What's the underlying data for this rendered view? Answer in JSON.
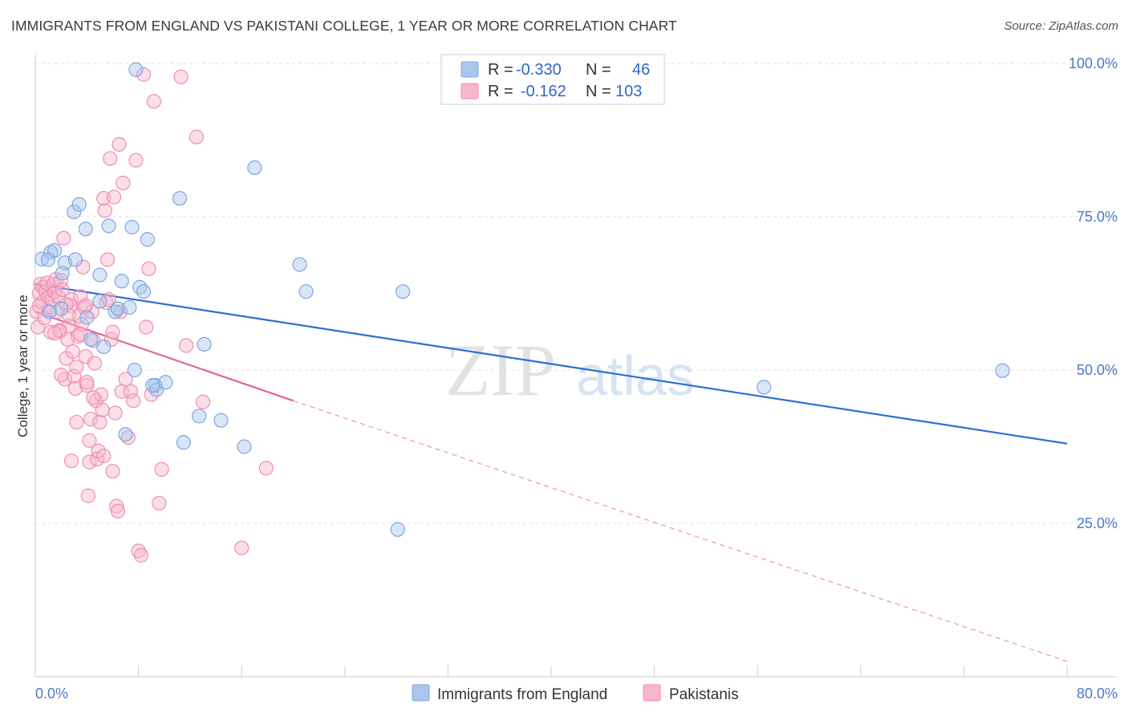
{
  "title": "IMMIGRANTS FROM ENGLAND VS PAKISTANI COLLEGE, 1 YEAR OR MORE CORRELATION CHART",
  "source": "Source: ZipAtlas.com",
  "watermark": {
    "zip": "ZIP",
    "atlas": "atlas"
  },
  "colors": {
    "blue_fill": "#a9c6ee",
    "blue_stroke": "#7ea7df",
    "blue_line": "#2b6fd1",
    "pink_fill": "#f6b6cb",
    "pink_stroke": "#ee8fb0",
    "pink_line": "#e0668f",
    "grid": "#e2e2e2",
    "axis_text": "#4a78c8"
  },
  "legend": {
    "r_label": "R =",
    "n_label": "N =",
    "rows": [
      {
        "series": "Immigrants from England",
        "r": "-0.330",
        "n": "46"
      },
      {
        "series": "Pakistanis",
        "r": "-0.162",
        "n": "103"
      }
    ]
  },
  "chart_data": {
    "type": "scatter",
    "title": "IMMIGRANTS FROM ENGLAND VS PAKISTANI COLLEGE, 1 YEAR OR MORE CORRELATION CHART",
    "xlabel": "",
    "ylabel": "College, 1 year or more",
    "xlim": [
      0,
      80
    ],
    "ylim": [
      0,
      100
    ],
    "x_tick_labels": [
      "0.0%",
      "80.0%"
    ],
    "y_tick_labels": [
      "25.0%",
      "50.0%",
      "75.0%",
      "100.0%"
    ],
    "y_ticks": [
      25,
      50,
      75,
      100
    ],
    "series": [
      {
        "name": "Immigrants from England",
        "color": "blue",
        "points": [
          [
            0.5,
            68.1
          ],
          [
            1.2,
            69.2
          ],
          [
            1.0,
            68.0
          ],
          [
            1.5,
            69.5
          ],
          [
            2.3,
            67.5
          ],
          [
            2.1,
            65.8
          ],
          [
            3.0,
            75.8
          ],
          [
            3.4,
            77.0
          ],
          [
            3.9,
            73.0
          ],
          [
            3.1,
            68.0
          ],
          [
            4.3,
            55.0
          ],
          [
            4.0,
            58.6
          ],
          [
            5.0,
            65.5
          ],
          [
            5.0,
            61.2
          ],
          [
            5.3,
            53.8
          ],
          [
            5.7,
            73.5
          ],
          [
            6.2,
            59.5
          ],
          [
            6.4,
            60.0
          ],
          [
            6.7,
            64.5
          ],
          [
            7.3,
            60.2
          ],
          [
            7.5,
            73.3
          ],
          [
            7.7,
            50.0
          ],
          [
            7.0,
            39.5
          ],
          [
            8.1,
            63.5
          ],
          [
            8.4,
            62.8
          ],
          [
            8.7,
            71.3
          ],
          [
            9.3,
            47.5
          ],
          [
            9.4,
            46.8
          ],
          [
            9.1,
            47.5
          ],
          [
            10.1,
            48.0
          ],
          [
            11.2,
            78.0
          ],
          [
            11.5,
            38.2
          ],
          [
            12.7,
            42.5
          ],
          [
            13.1,
            54.2
          ],
          [
            14.4,
            41.8
          ],
          [
            16.2,
            37.5
          ],
          [
            17.0,
            83.0
          ],
          [
            20.5,
            67.2
          ],
          [
            21.0,
            62.8
          ],
          [
            28.5,
            62.8
          ],
          [
            28.1,
            24.0
          ],
          [
            56.5,
            47.2
          ],
          [
            75.0,
            49.9
          ],
          [
            7.8,
            99.0
          ],
          [
            2.0,
            60.0
          ],
          [
            1.1,
            59.5
          ]
        ]
      },
      {
        "name": "Pakistanis",
        "color": "pink",
        "points": [
          [
            0.1,
            59.5
          ],
          [
            0.2,
            57.0
          ],
          [
            0.3,
            62.5
          ],
          [
            0.4,
            64.0
          ],
          [
            0.5,
            61.0
          ],
          [
            0.6,
            63.5
          ],
          [
            0.7,
            58.5
          ],
          [
            0.8,
            62.8
          ],
          [
            0.9,
            64.2
          ],
          [
            1.0,
            61.8
          ],
          [
            1.1,
            60.2
          ],
          [
            1.2,
            56.2
          ],
          [
            1.3,
            61.5
          ],
          [
            1.4,
            64.0
          ],
          [
            1.5,
            62.7
          ],
          [
            1.6,
            64.8
          ],
          [
            1.7,
            59.5
          ],
          [
            1.8,
            62.0
          ],
          [
            1.9,
            56.5
          ],
          [
            2.0,
            64.6
          ],
          [
            2.1,
            63.1
          ],
          [
            2.2,
            71.5
          ],
          [
            2.3,
            48.5
          ],
          [
            2.4,
            51.9
          ],
          [
            2.5,
            55.0
          ],
          [
            2.6,
            57.2
          ],
          [
            2.7,
            60.5
          ],
          [
            2.8,
            61.5
          ],
          [
            2.9,
            53.0
          ],
          [
            3.0,
            49.0
          ],
          [
            3.1,
            47.0
          ],
          [
            3.2,
            41.5
          ],
          [
            3.3,
            55.5
          ],
          [
            3.4,
            58.8
          ],
          [
            3.5,
            62.0
          ],
          [
            3.6,
            57.5
          ],
          [
            3.7,
            66.8
          ],
          [
            3.8,
            60.2
          ],
          [
            3.9,
            52.2
          ],
          [
            4.0,
            47.5
          ],
          [
            4.1,
            29.5
          ],
          [
            4.2,
            35.0
          ],
          [
            4.3,
            42.0
          ],
          [
            4.4,
            59.5
          ],
          [
            4.5,
            54.8
          ],
          [
            4.6,
            51.1
          ],
          [
            4.7,
            45.0
          ],
          [
            4.8,
            35.5
          ],
          [
            4.9,
            36.8
          ],
          [
            5.0,
            41.5
          ],
          [
            5.1,
            46.0
          ],
          [
            5.2,
            43.5
          ],
          [
            5.3,
            78.0
          ],
          [
            5.4,
            76.0
          ],
          [
            5.5,
            61.0
          ],
          [
            5.6,
            68.0
          ],
          [
            5.7,
            61.5
          ],
          [
            5.8,
            84.5
          ],
          [
            5.9,
            55.0
          ],
          [
            6.0,
            56.2
          ],
          [
            6.1,
            78.2
          ],
          [
            6.2,
            43.0
          ],
          [
            6.3,
            27.8
          ],
          [
            6.4,
            27.0
          ],
          [
            6.5,
            86.8
          ],
          [
            6.6,
            59.5
          ],
          [
            6.7,
            46.5
          ],
          [
            6.8,
            80.5
          ],
          [
            7.0,
            48.5
          ],
          [
            7.2,
            39.0
          ],
          [
            7.4,
            46.5
          ],
          [
            7.6,
            45.0
          ],
          [
            7.8,
            84.2
          ],
          [
            8.0,
            20.5
          ],
          [
            8.2,
            19.8
          ],
          [
            8.4,
            98.2
          ],
          [
            8.6,
            57.0
          ],
          [
            8.8,
            66.5
          ],
          [
            9.0,
            46.0
          ],
          [
            9.2,
            93.8
          ],
          [
            9.6,
            28.3
          ],
          [
            9.8,
            33.8
          ],
          [
            11.3,
            97.8
          ],
          [
            11.7,
            54.0
          ],
          [
            12.5,
            88.0
          ],
          [
            13.0,
            44.8
          ],
          [
            16.0,
            21.0
          ],
          [
            17.9,
            34.0
          ],
          [
            1.9,
            56.3
          ],
          [
            2.4,
            60.7
          ],
          [
            2.6,
            59.0
          ],
          [
            3.2,
            50.5
          ],
          [
            3.5,
            55.8
          ],
          [
            3.9,
            60.5
          ],
          [
            4.2,
            38.5
          ],
          [
            4.5,
            45.5
          ],
          [
            2.8,
            35.2
          ],
          [
            5.3,
            36.0
          ],
          [
            6.0,
            33.5
          ],
          [
            1.5,
            56.0
          ],
          [
            2.0,
            49.2
          ],
          [
            4.0,
            48.0
          ],
          [
            0.3,
            60.5
          ]
        ]
      }
    ],
    "trendlines": [
      {
        "series": "Immigrants from England",
        "x": [
          0,
          80
        ],
        "y": [
          64.0,
          38.0
        ],
        "style": "solid"
      },
      {
        "series": "Pakistanis",
        "x": [
          0,
          20
        ],
        "y": [
          59.5,
          45.0
        ],
        "style": "solid"
      },
      {
        "series": "Pakistanis",
        "x": [
          20,
          80
        ],
        "y": [
          45.0,
          2.5
        ],
        "style": "dashed"
      }
    ]
  }
}
